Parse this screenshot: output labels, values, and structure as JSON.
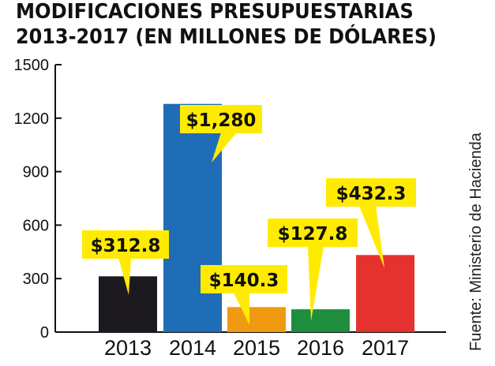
{
  "header": {
    "title": "MODIFICACIONES PRESUPUESTARIAS",
    "subtitle": "2013-2017 (EN MILLONES DE DÓLARES)"
  },
  "source": "Fuente: Ministerio de Hacienda",
  "chart_data": {
    "type": "bar",
    "title": "MODIFICACIONES PRESUPUESTARIAS 2013-2017 (EN MILLONES DE DÓLARES)",
    "categories": [
      "2013",
      "2014",
      "2015",
      "2016",
      "2017"
    ],
    "values": [
      312.8,
      1280,
      140.3,
      127.8,
      432.3
    ],
    "data_labels": [
      "$312.8",
      "$1,280",
      "$140.3",
      "$127.8",
      "$432.3"
    ],
    "colors": [
      "#1c1a1f",
      "#1f6db7",
      "#f09a12",
      "#1f8e3c",
      "#e5322e"
    ],
    "label_background": "#ffeb00",
    "ylim": [
      0,
      1500
    ],
    "yticks": [
      0,
      300,
      600,
      900,
      1200,
      1500
    ],
    "grid": false,
    "xlabel": "",
    "ylabel": ""
  }
}
